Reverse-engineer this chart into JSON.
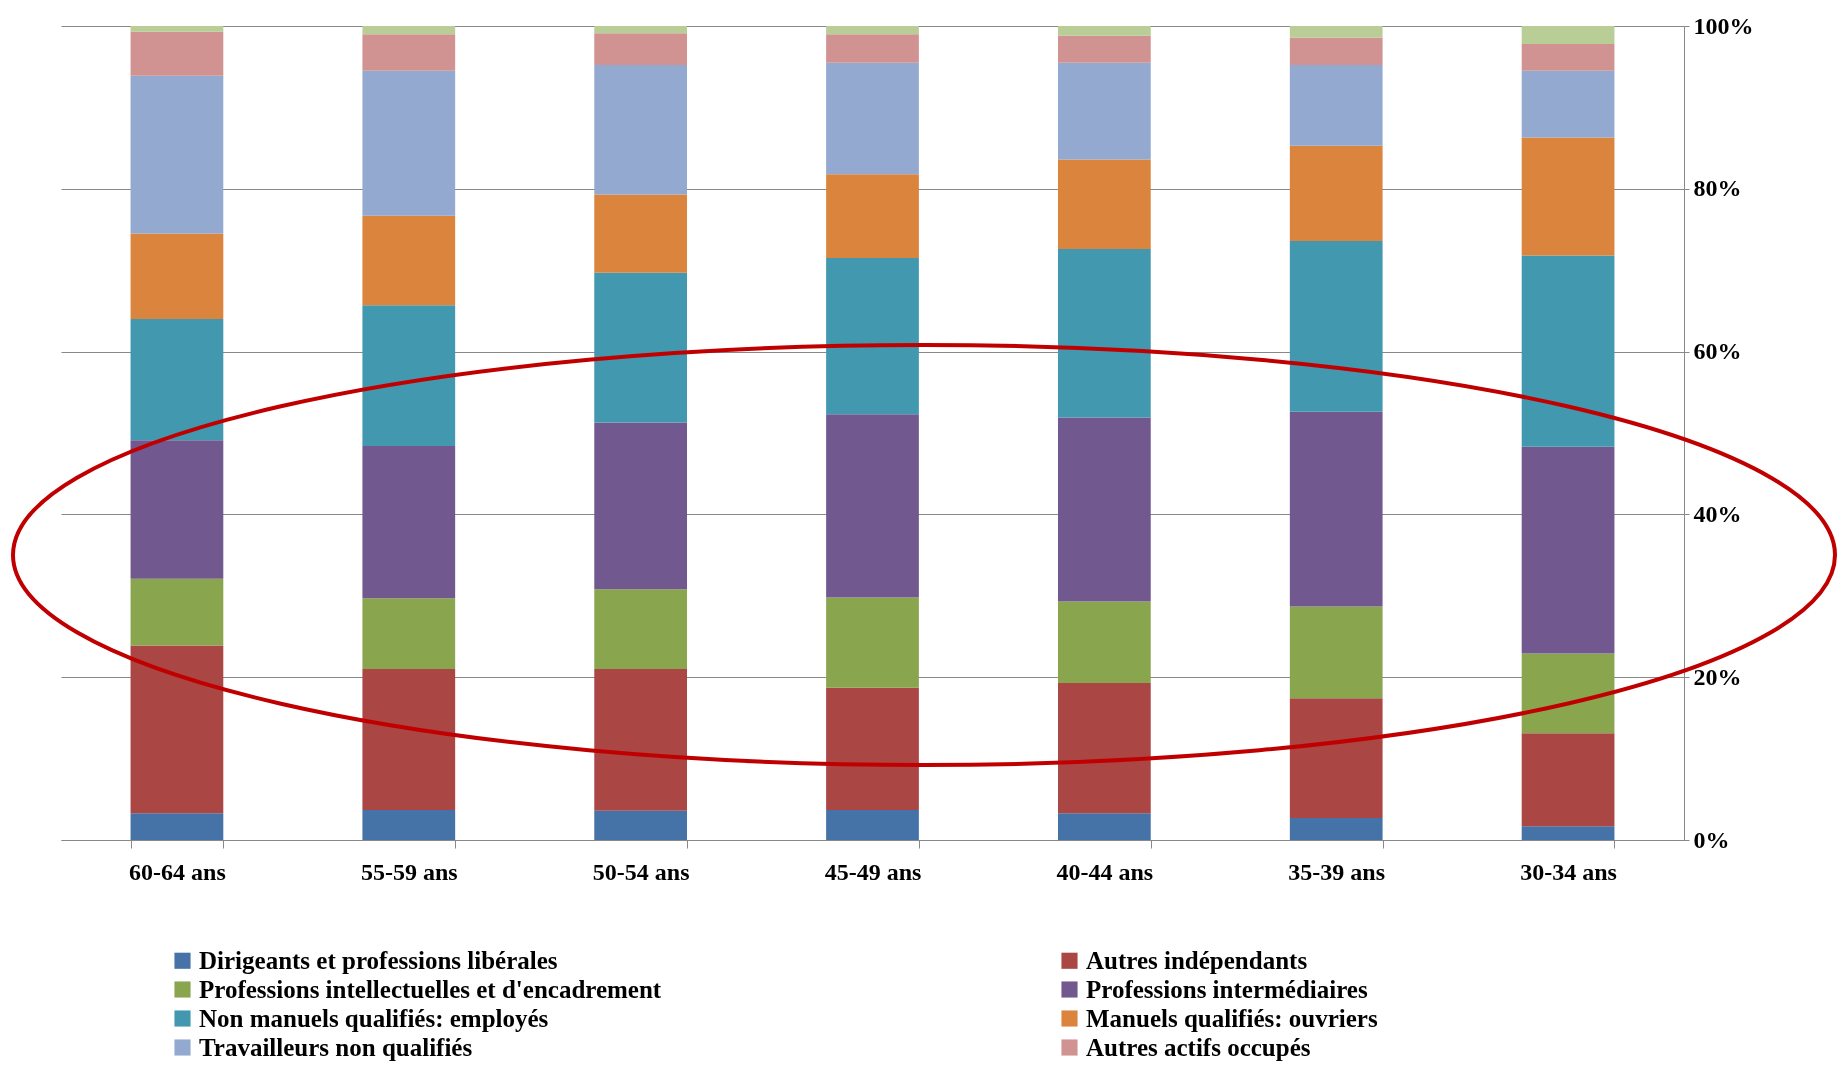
{
  "chart_data": {
    "type": "bar",
    "stacked": true,
    "categories": [
      "60-64 ans",
      "55-59 ans",
      "50-54 ans",
      "45-49 ans",
      "40-44 ans",
      "35-39 ans",
      "30-34 ans"
    ],
    "series": [
      {
        "name": "Dirigeants et professions libérales",
        "color": "#4573a7",
        "values": [
          3.3,
          3.7,
          3.6,
          3.7,
          3.3,
          2.7,
          1.7
        ]
      },
      {
        "name": "Autres indépendants",
        "color": "#aa4644",
        "values": [
          20.6,
          17.3,
          17.4,
          15.0,
          16.0,
          14.7,
          11.4
        ]
      },
      {
        "name": "Professions intellectuelles et d'encadrement",
        "color": "#89a54e",
        "values": [
          8.2,
          8.7,
          9.8,
          11.1,
          10.0,
          11.3,
          9.8
        ]
      },
      {
        "name": "Professions intermédiaires",
        "color": "#71588f",
        "values": [
          17.0,
          18.7,
          20.5,
          22.5,
          22.6,
          23.9,
          25.4
        ]
      },
      {
        "name": "Non manuels qualifiés: employés",
        "color": "#4198af",
        "values": [
          14.9,
          17.3,
          18.4,
          19.2,
          20.7,
          21.0,
          23.5
        ]
      },
      {
        "name": "Manuels qualifiés: ouvriers",
        "color": "#db843d",
        "values": [
          10.5,
          11.0,
          9.6,
          10.3,
          11.0,
          11.7,
          14.5
        ]
      },
      {
        "name": "Travailleurs non qualifiés",
        "color": "#93a9cf",
        "values": [
          19.4,
          17.8,
          15.9,
          13.7,
          11.9,
          9.9,
          8.2
        ]
      },
      {
        "name": "Autres actifs occupés",
        "color": "#d19392",
        "values": [
          5.4,
          4.5,
          3.9,
          3.5,
          3.3,
          3.4,
          3.3
        ]
      },
      {
        "color": "#b9cd96",
        "values": [
          0.7,
          1.0,
          0.9,
          1.0,
          1.2,
          1.4,
          2.2
        ]
      }
    ],
    "ylim": [
      0,
      100
    ],
    "yticks": [
      {
        "value": 0,
        "label": "0%"
      },
      {
        "value": 20,
        "label": "20%"
      },
      {
        "value": 40,
        "label": "40%"
      },
      {
        "value": 60,
        "label": "60%"
      },
      {
        "value": 80,
        "label": "80%"
      },
      {
        "value": 100,
        "label": "100%"
      }
    ],
    "grid": "y",
    "legend": "bottom"
  }
}
